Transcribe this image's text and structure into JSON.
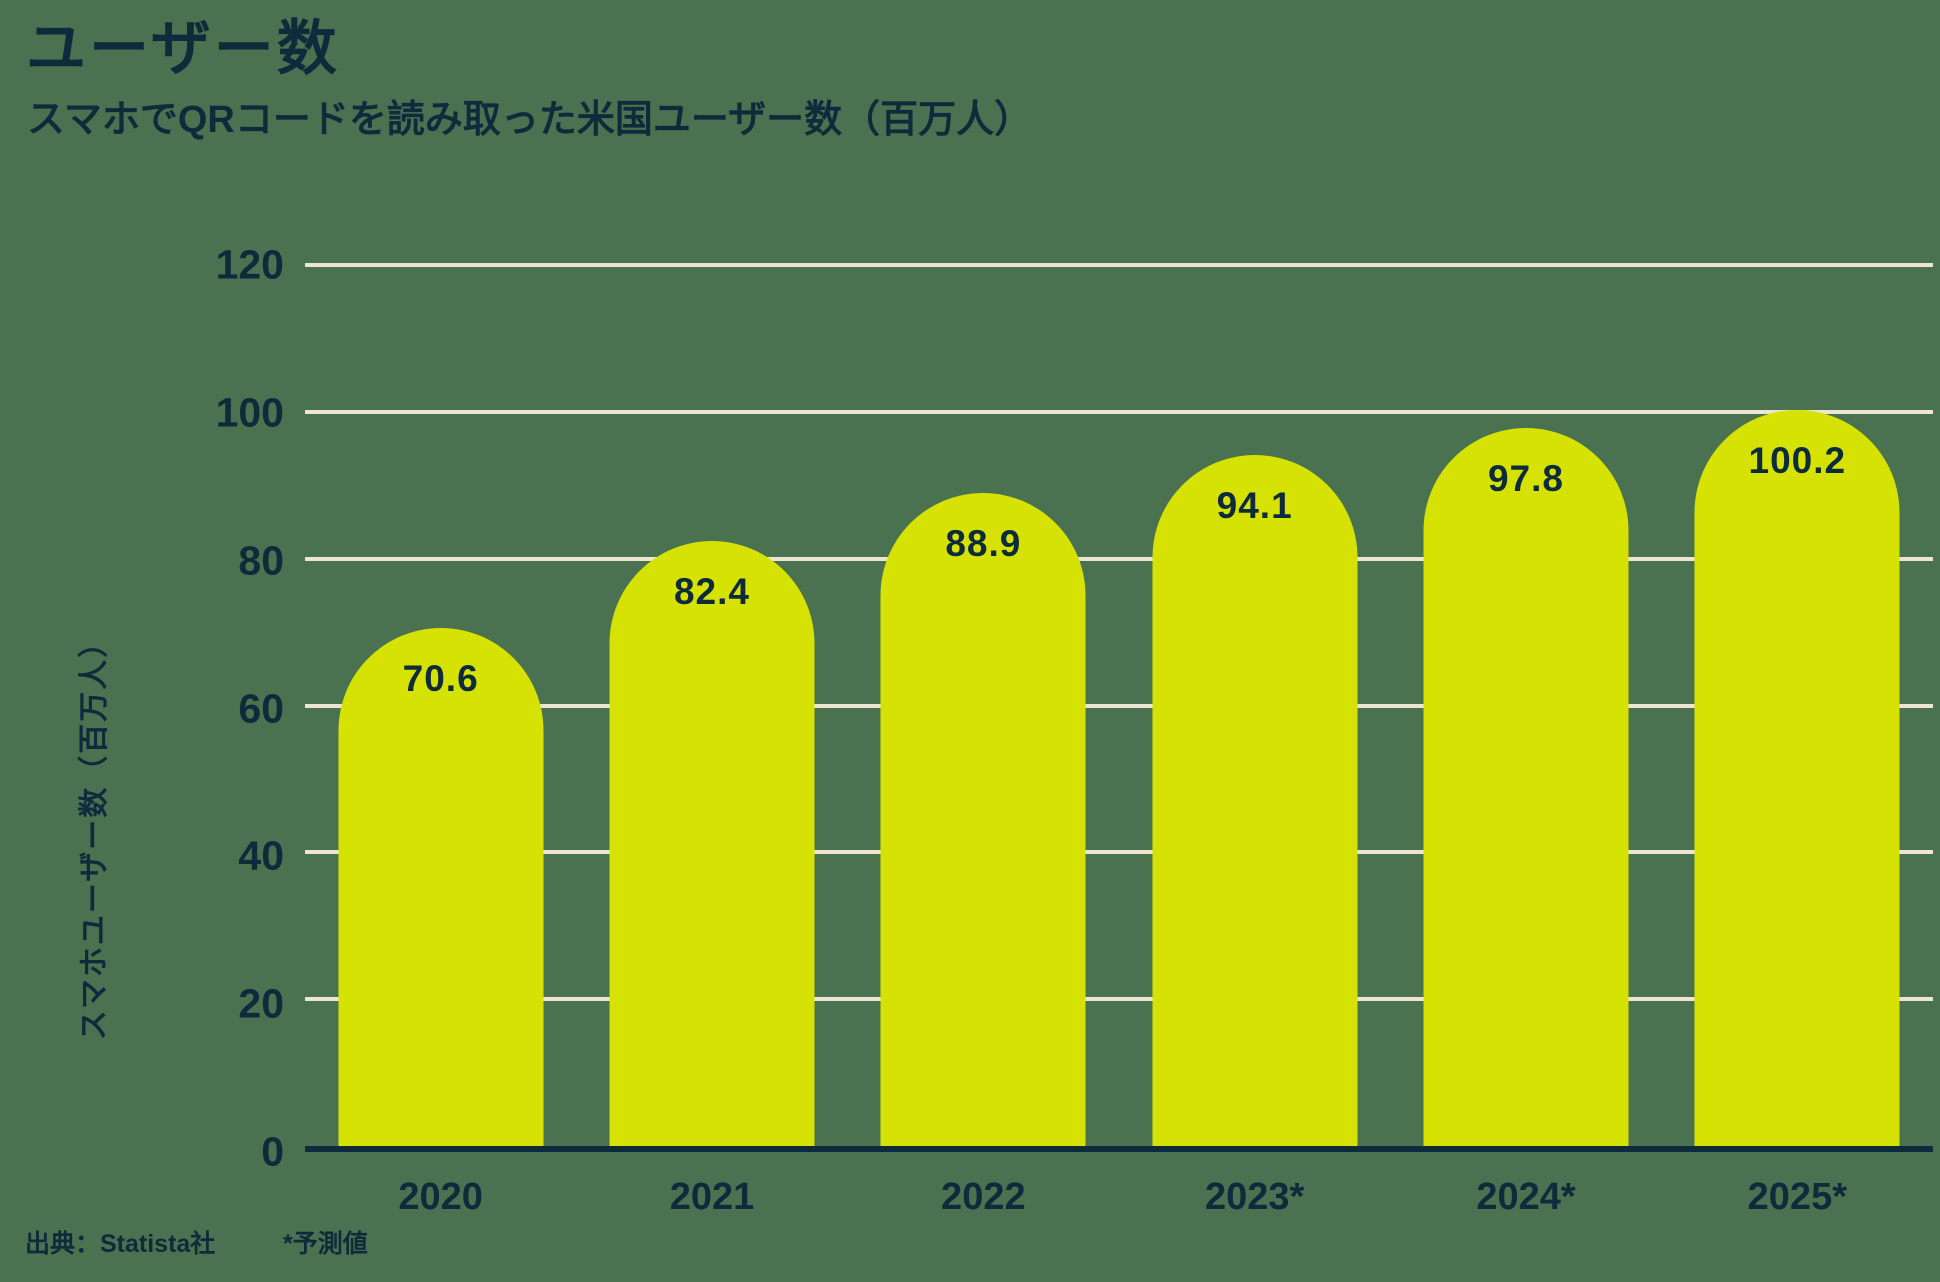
{
  "header": {
    "title": "ユーザー数",
    "subtitle": "スマホでQRコードを読み取った米国ユーザー数（百万人）"
  },
  "footer": {
    "source": "出典：Statista社",
    "note": "*予測値"
  },
  "chart_data": {
    "type": "bar",
    "title": "ユーザー数",
    "subtitle": "スマホでQRコードを読み取った米国ユーザー数（百万人）",
    "categories": [
      "2020",
      "2021",
      "2022",
      "2023*",
      "2024*",
      "2025*"
    ],
    "values": [
      70.6,
      82.4,
      88.9,
      94.1,
      97.8,
      100.2
    ],
    "value_labels": [
      "70.6",
      "82.4",
      "88.9",
      "94.1",
      "97.8",
      "100.2"
    ],
    "xlabel": "",
    "ylabel": "スマホユーザー数（百万人）",
    "ylim": [
      0,
      120
    ],
    "yticks": [
      0,
      20,
      40,
      60,
      80,
      100,
      120
    ],
    "grid": true,
    "legend_position": "none",
    "bar_shape": "rounded-top",
    "colors": {
      "background": "#4a7250",
      "bar": "#d5e204",
      "text": "#0e2b3c",
      "gridline": "#ece6d0"
    }
  }
}
